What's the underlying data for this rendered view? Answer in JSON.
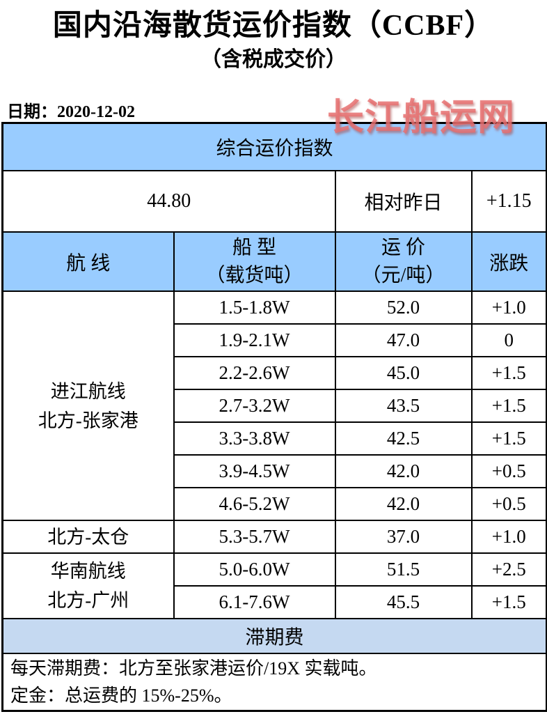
{
  "page": {
    "title": "国内沿海散货运价指数（CCBF）",
    "subtitle": "（含税成交价）",
    "date_line": "日期：2020-12-02",
    "watermark": "长江船运网"
  },
  "summary": {
    "header": "综合运价指数",
    "index_value": "44.80",
    "relative_label": "相对昨日",
    "relative_change": "+1.15"
  },
  "table": {
    "columns": {
      "route": "航  线",
      "ship_line1": "船  型",
      "ship_line2": "（载货吨）",
      "price_line1": "运  价",
      "price_line2": "（元/吨）",
      "change": "涨跌"
    },
    "groups": [
      {
        "route_lines": [
          "进江航线",
          "北方-张家港"
        ],
        "rows": [
          {
            "ship": "1.5-1.8W",
            "price": "52.0",
            "change": "+1.0"
          },
          {
            "ship": "1.9-2.1W",
            "price": "47.0",
            "change": "0"
          },
          {
            "ship": "2.2-2.6W",
            "price": "45.0",
            "change": "+1.5"
          },
          {
            "ship": "2.7-3.2W",
            "price": "43.5",
            "change": "+1.5"
          },
          {
            "ship": "3.3-3.8W",
            "price": "42.5",
            "change": "+1.5"
          },
          {
            "ship": "3.9-4.5W",
            "price": "42.0",
            "change": "+0.5"
          },
          {
            "ship": "4.6-5.2W",
            "price": "42.0",
            "change": "+0.5"
          }
        ]
      },
      {
        "route_lines": [
          "北方-太仓"
        ],
        "rows": [
          {
            "ship": "5.3-5.7W",
            "price": "37.0",
            "change": "+1.0"
          }
        ]
      },
      {
        "route_lines": [
          "华南航线",
          "北方-广州"
        ],
        "rows": [
          {
            "ship": "5.0-6.0W",
            "price": "51.5",
            "change": "+2.5"
          },
          {
            "ship": "6.1-7.6W",
            "price": "45.5",
            "change": "+1.5"
          }
        ]
      }
    ],
    "demurrage_header": "滞期费",
    "notes": [
      "每天滞期费：北方至张家港运价/19X 实载吨。",
      "定金：总运费的 15%-25%。"
    ]
  },
  "colors": {
    "header_blue": "#99ccff",
    "demurrage_blue": "#c5d9f1",
    "watermark_red": "#e76c6c",
    "border_black": "#000000"
  }
}
